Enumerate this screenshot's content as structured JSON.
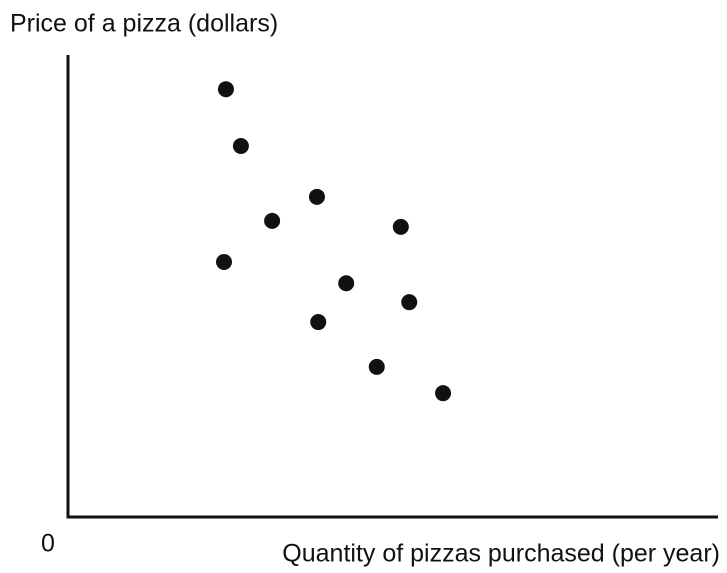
{
  "chart_data": {
    "type": "scatter",
    "ylabel": "Price of a pizza (dollars)",
    "xlabel": "Quantity of pizzas purchased (per year)",
    "xlim": [
      0,
      100
    ],
    "ylim": [
      0,
      100
    ],
    "xticks": [
      0
    ],
    "color": "#111111",
    "series": [
      {
        "x": [
          24.3,
          26.6,
          38.3,
          31.4,
          51.2,
          24.0,
          42.8,
          52.5,
          38.5,
          47.5,
          57.7
        ],
        "values": [
          92.6,
          80.3,
          69.3,
          64.1,
          62.8,
          55.2,
          50.6,
          46.5,
          42.2,
          32.5,
          26.8
        ]
      }
    ]
  }
}
